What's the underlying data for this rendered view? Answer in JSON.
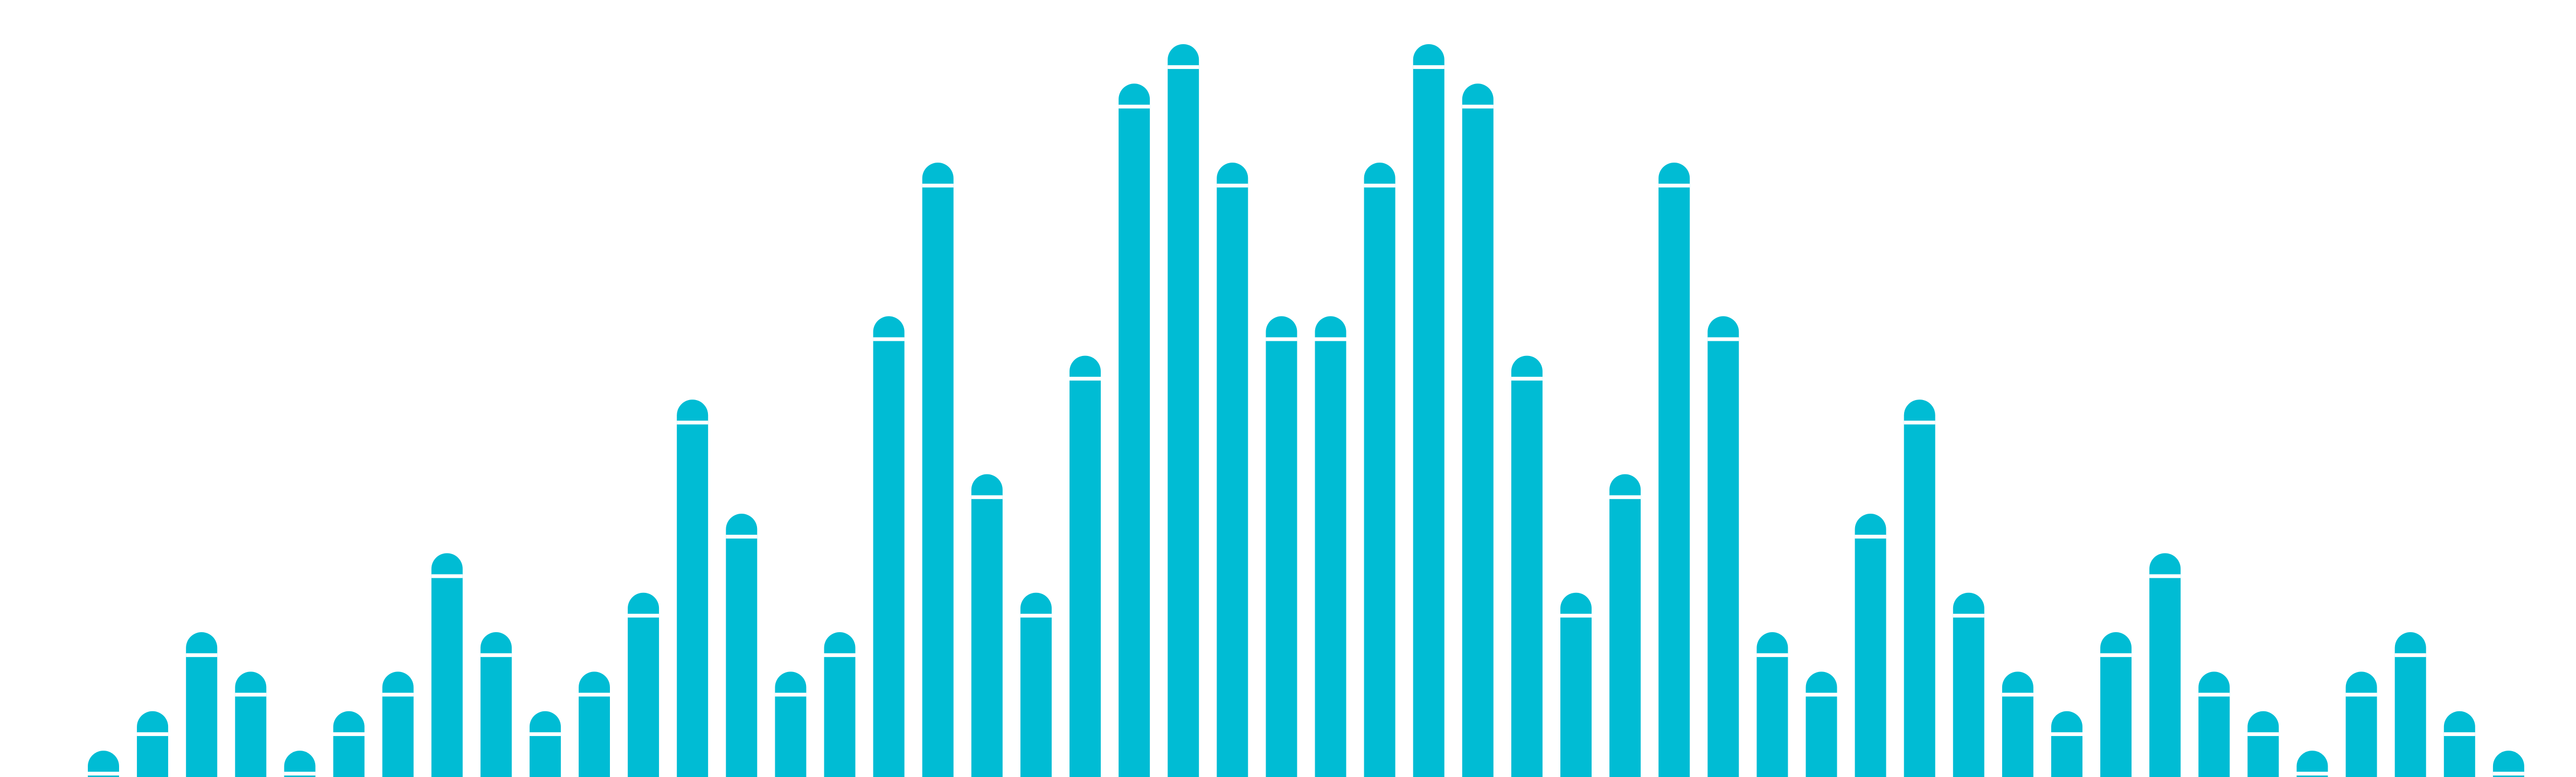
{
  "graphic": {
    "kind": "audio-waveform-bars",
    "bar_color": "#00BCD4",
    "background_color": "#FFFFFF",
    "bar_count": 50,
    "levels": [
      0.06,
      0.15,
      0.33,
      0.24,
      0.06,
      0.15,
      0.24,
      0.51,
      0.33,
      0.15,
      0.24,
      0.42,
      0.86,
      0.6,
      0.24,
      0.33,
      1.05,
      1.4,
      0.69,
      0.42,
      0.96,
      1.58,
      1.67,
      1.4,
      1.05,
      1.05,
      1.4,
      1.67,
      1.58,
      0.96,
      0.42,
      0.69,
      1.4,
      1.05,
      0.33,
      0.24,
      0.6,
      0.86,
      0.42,
      0.24,
      0.15,
      0.33,
      0.51,
      0.24,
      0.15,
      0.06,
      0.24,
      0.33,
      0.15,
      0.06
    ]
  }
}
